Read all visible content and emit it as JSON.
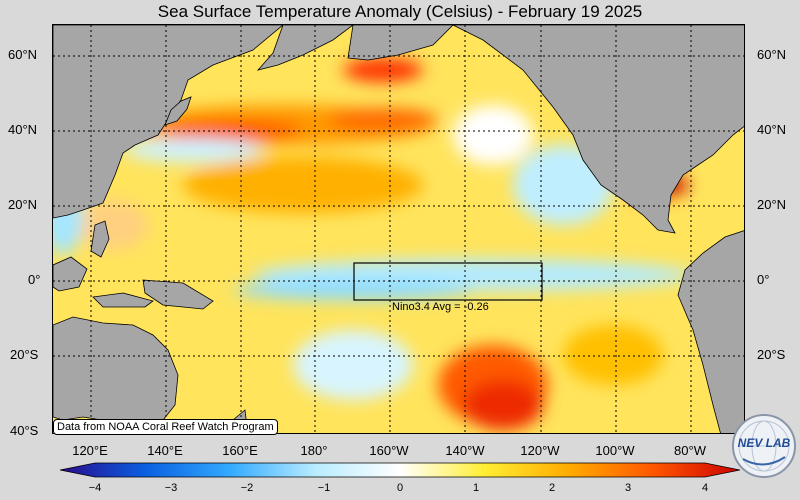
{
  "title": "Sea Surface Temperature Anomaly (Celsius) - February 19 2025",
  "lat_labels": [
    "60°N",
    "40°N",
    "20°N",
    "0°",
    "20°S",
    "40°S"
  ],
  "lon_labels": [
    "120°E",
    "140°E",
    "160°E",
    "180°",
    "160°W",
    "140°W",
    "120°W",
    "100°W",
    "80°W"
  ],
  "source_note": "Data from NOAA Coral Reef Watch Program",
  "nino_label": "Nino3.4 Avg = -0.26",
  "colorbar": {
    "ticks": [
      "−4",
      "−3",
      "−2",
      "−1",
      "0",
      "1",
      "2",
      "3",
      "4"
    ],
    "min": -4,
    "max": 4,
    "colors": [
      "#2a0a8c",
      "#0a5fe0",
      "#33aaff",
      "#b8ecff",
      "#ffffff",
      "#ffee33",
      "#ffaa00",
      "#ff5500",
      "#cc0000"
    ]
  },
  "logo": {
    "text": "NEV LAB",
    "icon": "nevlab-globe-icon"
  },
  "colors": {
    "land": "#a6a6a6",
    "ocean_base": "#ffe45c",
    "page": "#d9d9d9"
  }
}
